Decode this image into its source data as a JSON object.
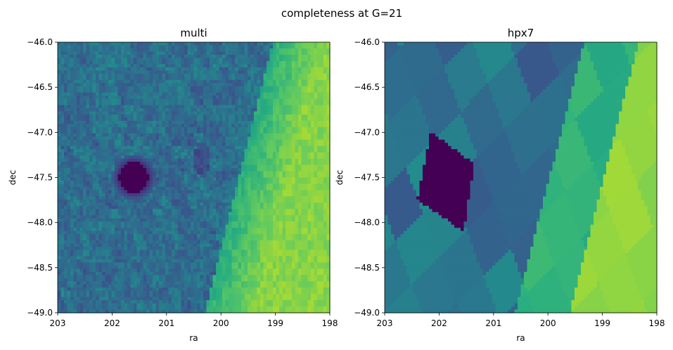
{
  "figure_title": "completeness at G=21",
  "chart_data": [
    {
      "type": "heatmap",
      "title": "multi",
      "xlabel": "ra",
      "ylabel": "dec",
      "xlim": [
        203,
        198
      ],
      "ylim": [
        -49.0,
        -46.0
      ],
      "xticks": [
        203,
        202,
        201,
        200,
        199,
        198
      ],
      "yticks": [
        -46.0,
        -46.5,
        -47.0,
        -47.5,
        -48.0,
        -48.5,
        -49.0
      ],
      "xtick_labels": [
        "203",
        "202",
        "201",
        "200",
        "199",
        "198"
      ],
      "ytick_labels": [
        "−46.0",
        "−46.5",
        "−47.0",
        "−47.5",
        "−48.0",
        "−48.5",
        "−49.0"
      ],
      "colormap": "viridis",
      "grid": false,
      "features": [
        {
          "kind": "low-completeness hole",
          "ra": 201.6,
          "dec": -47.5
        },
        {
          "kind": "high-completeness region",
          "location": "east edge (ra < 200)"
        }
      ]
    },
    {
      "type": "heatmap",
      "title": "hpx7",
      "xlabel": "ra",
      "ylabel": "dec",
      "xlim": [
        203,
        198
      ],
      "ylim": [
        -49.0,
        -46.0
      ],
      "xticks": [
        203,
        202,
        201,
        200,
        199,
        198
      ],
      "yticks": [
        -46.0,
        -46.5,
        -47.0,
        -47.5,
        -48.0,
        -48.5,
        -49.0
      ],
      "xtick_labels": [
        "203",
        "202",
        "201",
        "200",
        "199",
        "198"
      ],
      "ytick_labels": [
        "−46.0",
        "−46.5",
        "−47.0",
        "−47.5",
        "−48.0",
        "−48.5",
        "−49.0"
      ],
      "colormap": "viridis",
      "grid": false,
      "features": [
        {
          "kind": "low-completeness hole",
          "ra": 201.8,
          "dec": -47.6
        },
        {
          "kind": "healpix tiled stripes",
          "location": "diagonal bands"
        }
      ]
    }
  ],
  "colors": {
    "viridis_dark": "#440154",
    "viridis_blue": "#39568c",
    "viridis_teal": "#2a788e",
    "viridis_green": "#22a884",
    "viridis_lime": "#7ad151",
    "viridis_yellow": "#bddf26"
  }
}
